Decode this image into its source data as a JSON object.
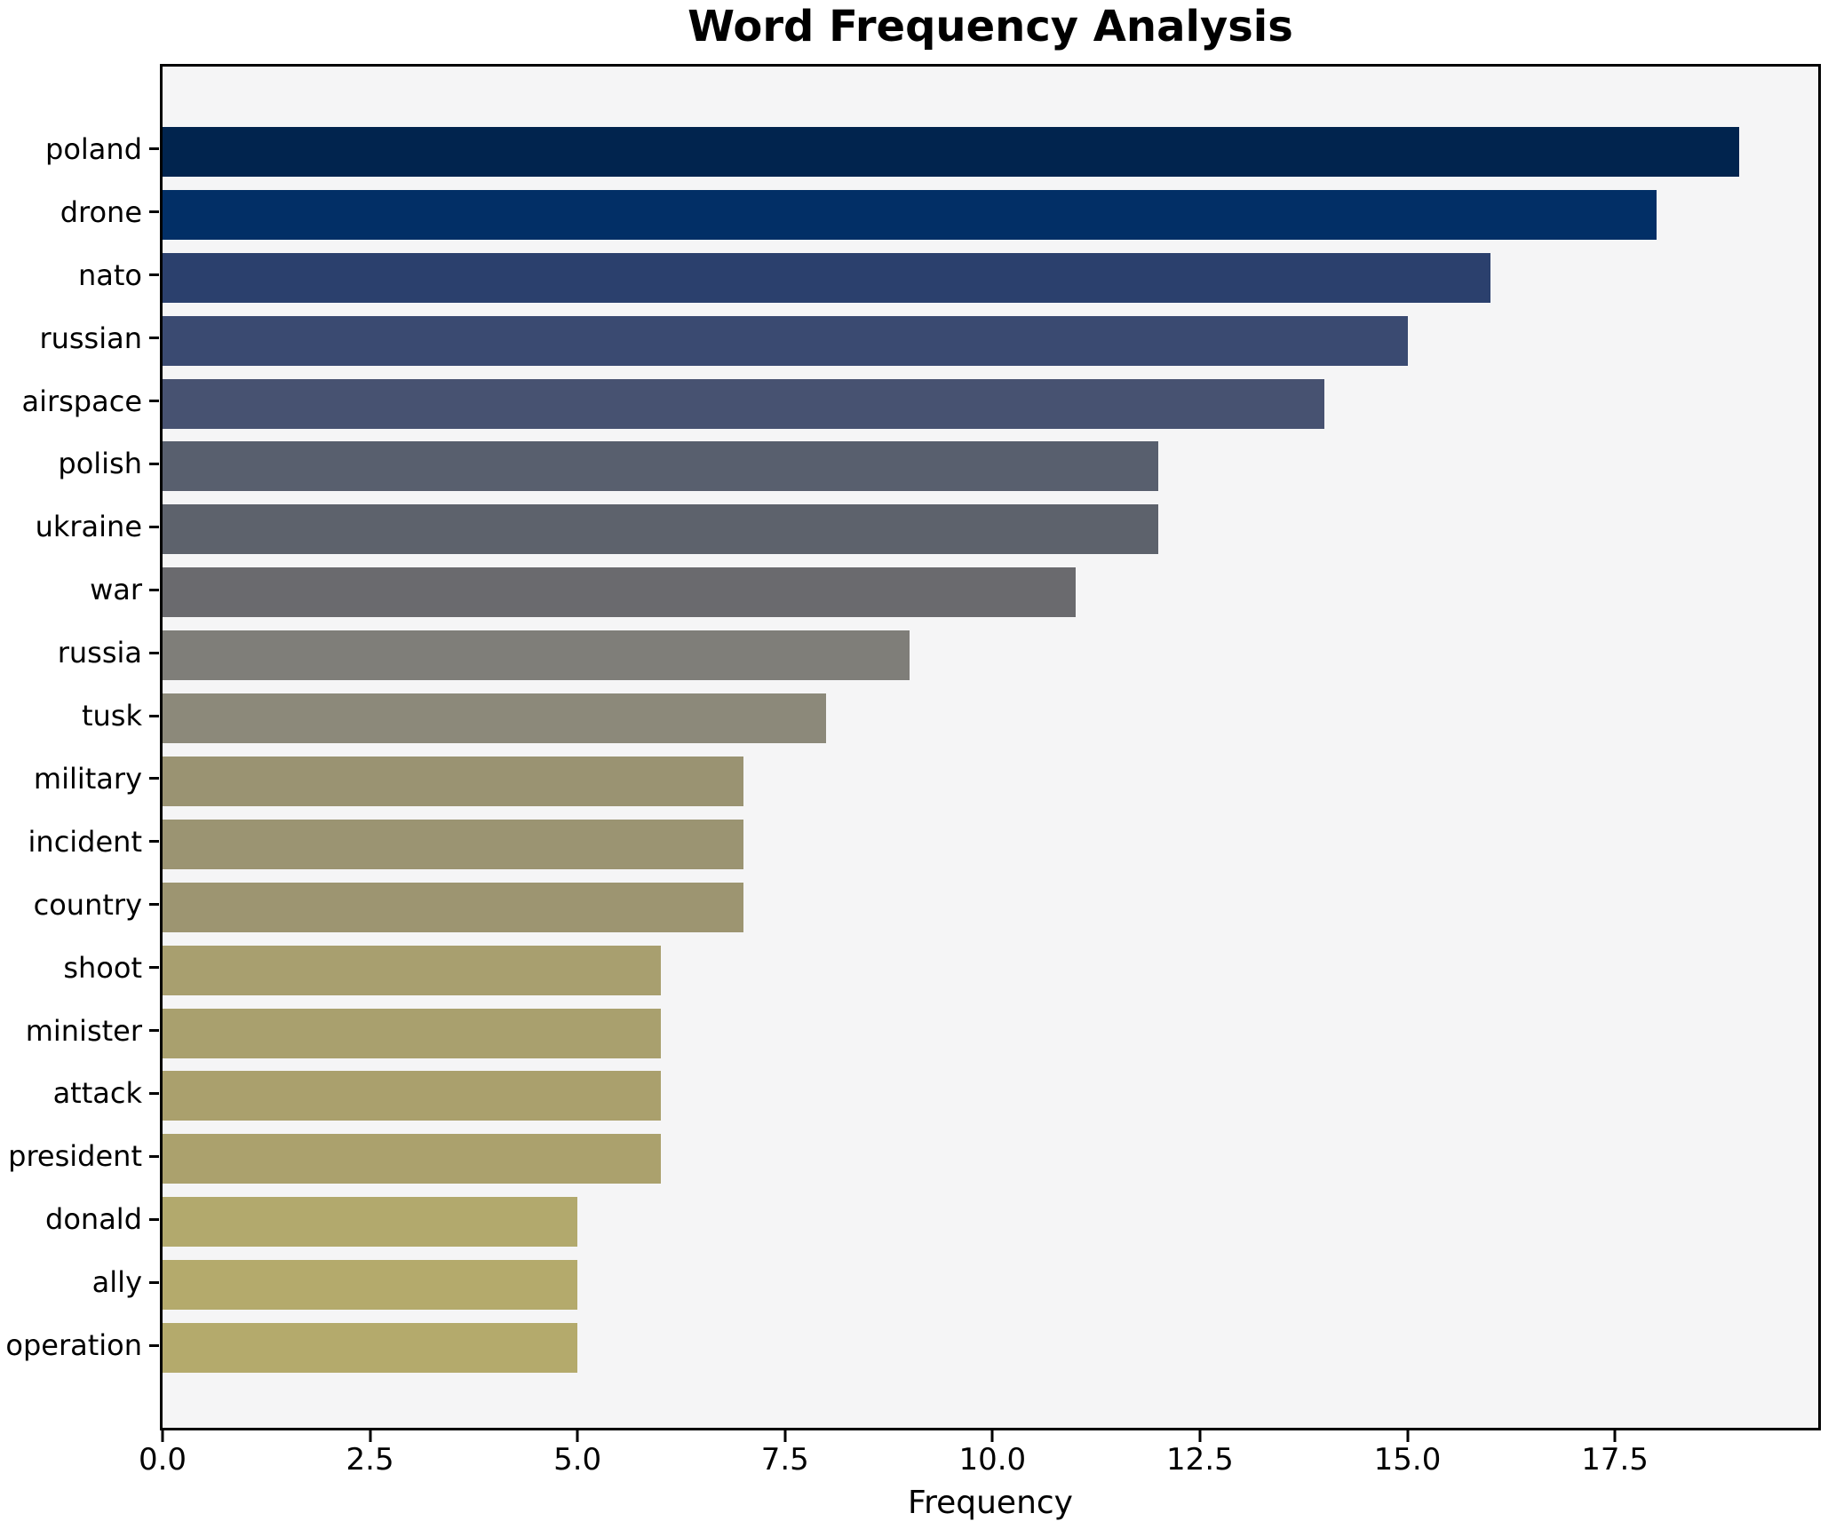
{
  "chart_data": {
    "type": "bar",
    "orientation": "horizontal",
    "title": "Word Frequency Analysis",
    "xlabel": "Frequency",
    "ylabel": "",
    "categories": [
      "poland",
      "drone",
      "nato",
      "russian",
      "airspace",
      "polish",
      "ukraine",
      "war",
      "russia",
      "tusk",
      "military",
      "incident",
      "country",
      "shoot",
      "minister",
      "attack",
      "president",
      "donald",
      "ally",
      "operation"
    ],
    "values": [
      19,
      18,
      16,
      15,
      14,
      12,
      12,
      11,
      9,
      8,
      7,
      7,
      7,
      6,
      6,
      6,
      6,
      5,
      5,
      5
    ],
    "bar_colors": [
      "#01244e",
      "#022f66",
      "#2b406d",
      "#3a4a71",
      "#475271",
      "#585f6e",
      "#5d626c",
      "#6a6a6e",
      "#7f7e79",
      "#8c897a",
      "#9a9372",
      "#9b9472",
      "#9d9571",
      "#a89f6f",
      "#a9a06e",
      "#aaa06d",
      "#aba16d",
      "#b2a96d",
      "#b4aa6c",
      "#b4aa6c"
    ],
    "xlim": [
      0,
      19.95
    ],
    "x_ticks": [
      "0.0",
      "2.5",
      "5.0",
      "7.5",
      "10.0",
      "12.5",
      "15.0",
      "17.5"
    ],
    "x_tick_values": [
      0,
      2.5,
      5,
      7.5,
      10,
      12.5,
      15,
      17.5
    ],
    "grid": false,
    "legend": "none",
    "plot_background": "#f5f5f6",
    "figure_background": "#ffffff",
    "spine_color": "#000000",
    "text_color": "#000000"
  }
}
